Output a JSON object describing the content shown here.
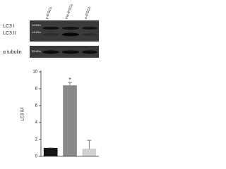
{
  "blot": {
    "lanes": [
      "y-iPSCs",
      "ma-iPSCs",
      "a-iPSCs"
    ],
    "bands": [
      {
        "name": "LC3 I",
        "size": "16 kDa"
      },
      {
        "name": "LC3 II",
        "size": "14 kDa"
      }
    ],
    "loading": {
      "name": "α tubulin",
      "size": "55 kDa"
    }
  },
  "chart_data": {
    "type": "bar",
    "y_label": "LC3 II/I",
    "annotation": "*",
    "categories": [
      null,
      null,
      null
    ],
    "values": [
      1.0,
      8.4,
      0.9
    ],
    "errors": [
      0,
      0.35,
      1.0
    ],
    "colors": [
      "#151515",
      "#8a8a8a",
      "#d0d0d0"
    ],
    "ylim": [
      0,
      10
    ],
    "yticks": [
      0,
      2,
      4,
      6,
      8,
      10
    ],
    "grid": false
  }
}
